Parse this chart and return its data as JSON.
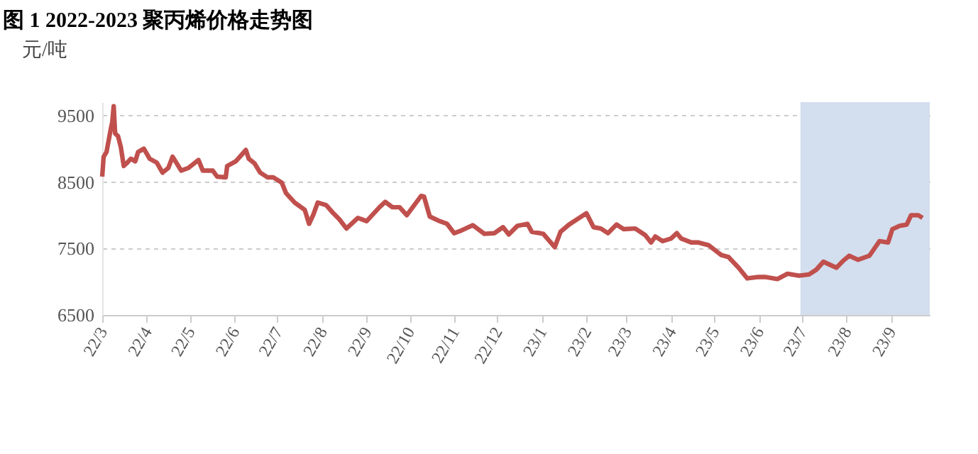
{
  "chart_data": {
    "type": "line",
    "title": "图 1 2022-2023 聚丙烯价格走势图",
    "ylabel": "元/吨",
    "x": [
      "2022-03-01",
      "2022-03-02",
      "2022-03-04",
      "2022-03-07",
      "2022-03-08",
      "2022-03-09",
      "2022-03-10",
      "2022-03-12",
      "2022-03-14",
      "2022-03-16",
      "2022-03-18",
      "2022-03-21",
      "2022-03-24",
      "2022-03-26",
      "2022-03-30",
      "2022-04-03",
      "2022-04-08",
      "2022-04-12",
      "2022-04-16",
      "2022-04-19",
      "2022-04-25",
      "2022-04-30",
      "2022-05-07",
      "2022-05-10",
      "2022-05-17",
      "2022-05-20",
      "2022-05-26",
      "2022-05-27",
      "2022-06-02",
      "2022-06-09",
      "2022-06-11",
      "2022-06-15",
      "2022-06-19",
      "2022-06-24",
      "2022-06-28",
      "2022-07-04",
      "2022-07-07",
      "2022-07-13",
      "2022-07-20",
      "2022-07-23",
      "2022-07-26",
      "2022-07-29",
      "2022-08-04",
      "2022-08-08",
      "2022-08-13",
      "2022-08-18",
      "2022-08-26",
      "2022-09-01",
      "2022-09-10",
      "2022-09-14",
      "2022-09-19",
      "2022-09-24",
      "2022-09-29",
      "2022-10-09",
      "2022-10-11",
      "2022-10-15",
      "2022-10-22",
      "2022-10-27",
      "2022-11-01",
      "2022-11-06",
      "2022-11-14",
      "2022-11-22",
      "2022-11-29",
      "2022-12-05",
      "2022-12-09",
      "2022-12-15",
      "2022-12-22",
      "2022-12-25",
      "2023-01-02",
      "2023-01-10",
      "2023-01-14",
      "2023-01-20",
      "2023-02-01",
      "2023-02-06",
      "2023-02-11",
      "2023-02-16",
      "2023-02-22",
      "2023-02-27",
      "2023-03-07",
      "2023-03-14",
      "2023-03-18",
      "2023-03-21",
      "2023-03-26",
      "2023-04-01",
      "2023-04-05",
      "2023-04-08",
      "2023-04-15",
      "2023-04-20",
      "2023-04-27",
      "2023-05-03",
      "2023-05-06",
      "2023-05-11",
      "2023-05-18",
      "2023-05-24",
      "2023-05-31",
      "2023-06-06",
      "2023-06-14",
      "2023-06-21",
      "2023-06-29",
      "2023-07-06",
      "2023-07-11",
      "2023-07-16",
      "2023-07-20",
      "2023-07-25",
      "2023-07-30",
      "2023-08-03",
      "2023-08-09",
      "2023-08-17",
      "2023-08-24",
      "2023-08-30",
      "2023-09-02",
      "2023-09-07",
      "2023-09-12",
      "2023-09-15",
      "2023-09-20",
      "2023-09-23"
    ],
    "series": [
      {
        "color": "#c0504d",
        "values": [
          8580,
          8880,
          8950,
          9300,
          9400,
          9640,
          9230,
          9190,
          9020,
          8740,
          8780,
          8850,
          8810,
          8950,
          9000,
          8850,
          8790,
          8640,
          8710,
          8880,
          8670,
          8710,
          8830,
          8670,
          8670,
          8580,
          8570,
          8740,
          8810,
          8980,
          8850,
          8780,
          8640,
          8570,
          8570,
          8490,
          8330,
          8190,
          8080,
          7870,
          8010,
          8190,
          8150,
          8050,
          7940,
          7800,
          7960,
          7910,
          8120,
          8200,
          8120,
          8120,
          8000,
          8290,
          8280,
          7980,
          7910,
          7870,
          7730,
          7770,
          7850,
          7720,
          7730,
          7820,
          7710,
          7840,
          7870,
          7750,
          7720,
          7520,
          7750,
          7860,
          8030,
          7820,
          7800,
          7730,
          7860,
          7790,
          7800,
          7700,
          7590,
          7680,
          7610,
          7650,
          7730,
          7650,
          7590,
          7590,
          7550,
          7450,
          7400,
          7370,
          7210,
          7050,
          7070,
          7070,
          7040,
          7120,
          7090,
          7110,
          7180,
          7300,
          7260,
          7210,
          7320,
          7390,
          7330,
          7390,
          7610,
          7590,
          7790,
          7840,
          7860,
          8000,
          8000,
          7960
        ]
      }
    ],
    "xlim": [
      "2022-03-01",
      "2023-09-28"
    ],
    "xticks": [
      {
        "value": "2022-03-01",
        "label": "22/3"
      },
      {
        "value": "2022-04-01",
        "label": "22/4"
      },
      {
        "value": "2022-05-01",
        "label": "22/5"
      },
      {
        "value": "2022-06-01",
        "label": "22/6"
      },
      {
        "value": "2022-07-01",
        "label": "22/7"
      },
      {
        "value": "2022-08-01",
        "label": "22/8"
      },
      {
        "value": "2022-09-01",
        "label": "22/9"
      },
      {
        "value": "2022-10-01",
        "label": "22/10"
      },
      {
        "value": "2022-11-01",
        "label": "22/11"
      },
      {
        "value": "2022-12-01",
        "label": "22/12"
      },
      {
        "value": "2023-01-01",
        "label": "23/1"
      },
      {
        "value": "2023-02-01",
        "label": "23/2"
      },
      {
        "value": "2023-03-01",
        "label": "23/3"
      },
      {
        "value": "2023-04-01",
        "label": "23/4"
      },
      {
        "value": "2023-05-01",
        "label": "23/5"
      },
      {
        "value": "2023-06-01",
        "label": "23/6"
      },
      {
        "value": "2023-07-01",
        "label": "23/7"
      },
      {
        "value": "2023-08-01",
        "label": "23/8"
      },
      {
        "value": "2023-09-01",
        "label": "23/9"
      }
    ],
    "ylim": [
      6500,
      9700
    ],
    "yticks": [
      6500,
      7500,
      8500,
      9500
    ],
    "bands": [
      {
        "axis": "x",
        "from": "2023-06-30",
        "to": "2023-09-28",
        "color": "#d3deee"
      }
    ],
    "grid": "y",
    "marker": "none",
    "line_style": "solid"
  }
}
